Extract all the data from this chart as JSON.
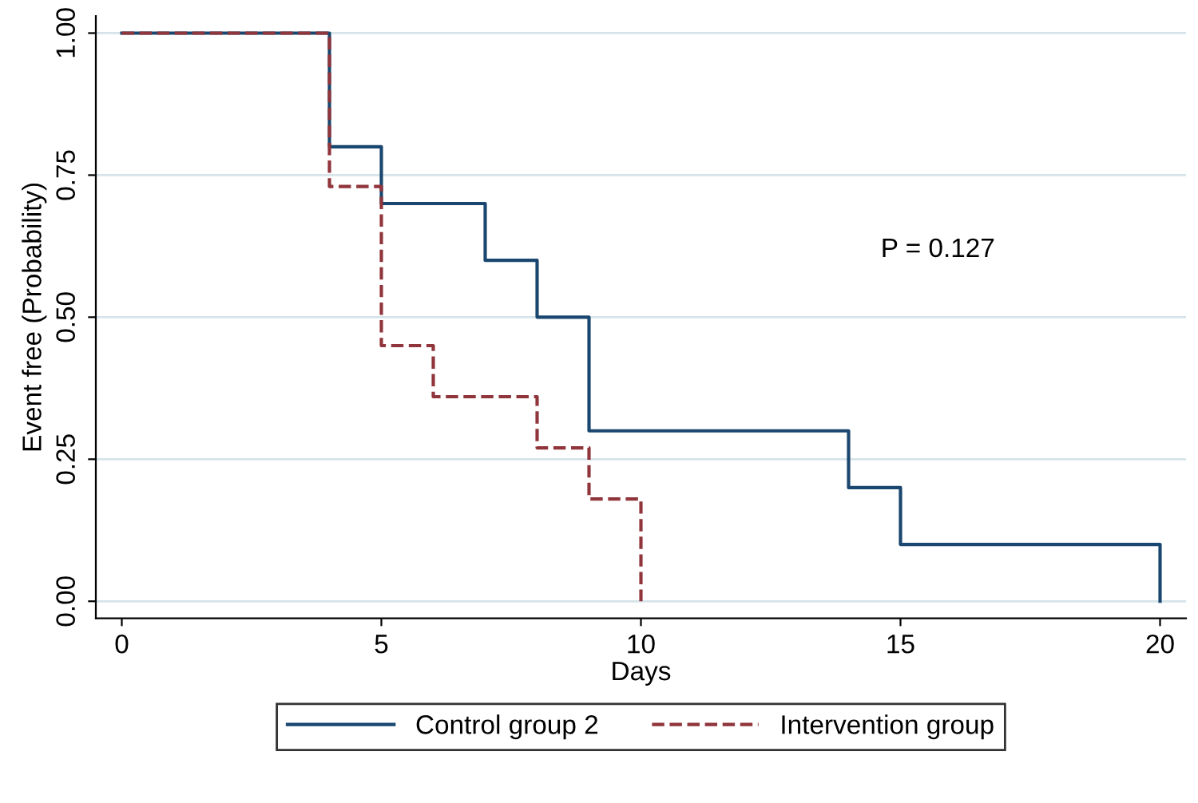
{
  "chart_data": {
    "type": "step",
    "xlabel": "Days",
    "ylabel": "Event free (Probability)",
    "xlim": [
      -0.5,
      20.5
    ],
    "ylim": [
      -0.03,
      1.03
    ],
    "xticks": [
      0,
      5,
      10,
      15,
      20
    ],
    "yticks": [
      {
        "value": 0,
        "label": "0.00"
      },
      {
        "value": 0.25,
        "label": "0.25"
      },
      {
        "value": 0.5,
        "label": "0.50"
      },
      {
        "value": 0.75,
        "label": "0.75"
      },
      {
        "value": 1,
        "label": "1.00"
      }
    ],
    "grid": "y",
    "legend": "bottom",
    "annotations": [
      "P = 0.127"
    ],
    "series": [
      {
        "name": "Control group 2",
        "color": "#1a476f",
        "line_style": "solid",
        "x": [
          0,
          4,
          5,
          7,
          8,
          9,
          14,
          15,
          20
        ],
        "values": [
          1,
          0.8,
          0.7,
          0.6,
          0.5,
          0.3,
          0.2,
          0.1,
          0
        ]
      },
      {
        "name": "Intervention group",
        "color": "#90353b",
        "line_style": "dashed",
        "x": [
          0,
          4,
          5,
          6,
          8,
          9,
          10
        ],
        "values": [
          1,
          0.73,
          0.45,
          0.36,
          0.27,
          0.18,
          0
        ]
      }
    ]
  }
}
